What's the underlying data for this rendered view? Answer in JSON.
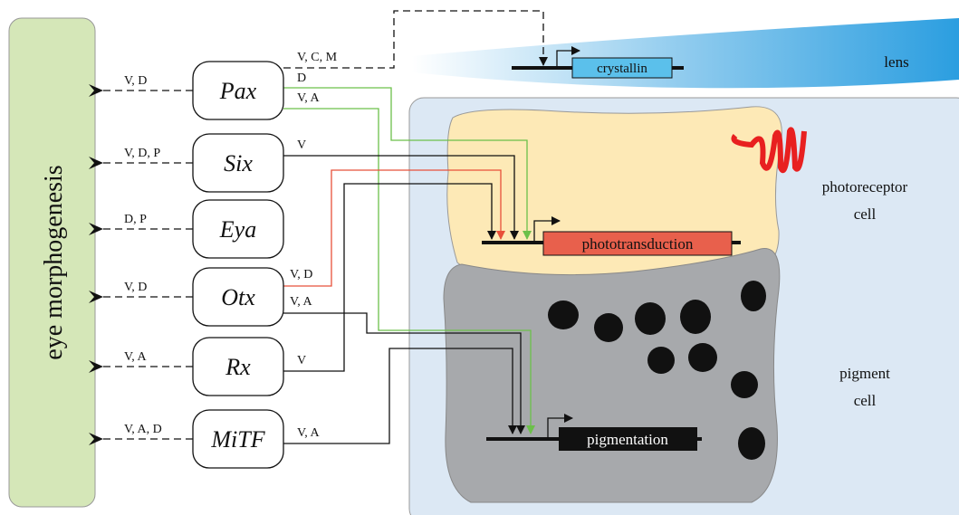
{
  "sidebar": {
    "label": "eye morphogenesis"
  },
  "genes": [
    {
      "name": "Pax",
      "morphogenesis_label": "V, D",
      "target_labels": [
        "V, C, M",
        "D",
        "V, A"
      ]
    },
    {
      "name": "Six",
      "morphogenesis_label": "V, D, P",
      "target_labels": [
        "V"
      ]
    },
    {
      "name": "Eya",
      "morphogenesis_label": "D, P",
      "target_labels": []
    },
    {
      "name": "Otx",
      "morphogenesis_label": "V, D",
      "target_labels": [
        "V, D",
        "V, A"
      ]
    },
    {
      "name": "Rx",
      "morphogenesis_label": "V, A",
      "target_labels": [
        "V"
      ]
    },
    {
      "name": "MiTF",
      "morphogenesis_label": "V, A, D",
      "target_labels": [
        "V, A"
      ]
    }
  ],
  "cells": {
    "lens": {
      "label": [
        "lens"
      ],
      "gene": "crystallin"
    },
    "photoreceptor": {
      "label": [
        "photoreceptor",
        "cell"
      ],
      "gene": "phototransduction"
    },
    "pigment": {
      "label": [
        "pigment",
        "cell"
      ],
      "gene": "pigmentation"
    }
  }
}
